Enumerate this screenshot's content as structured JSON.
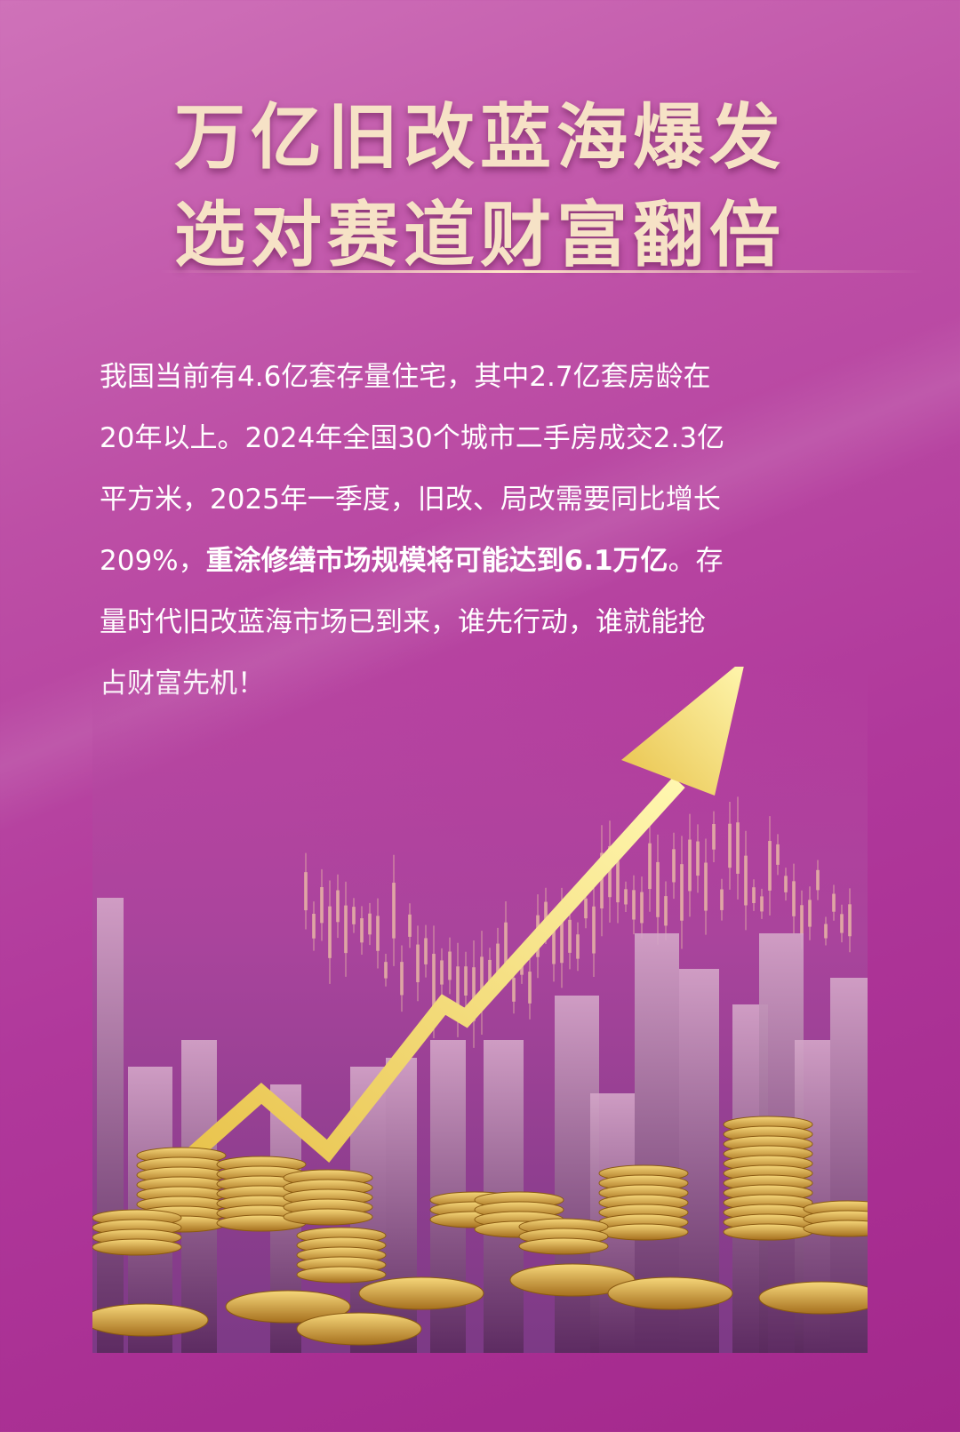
{
  "title": {
    "line1": "万亿旧改蓝海爆发",
    "line2": "选对赛道财富翻倍"
  },
  "paragraph": {
    "line1": "我国当前有4.6亿套存量住宅，其中2.7亿套房龄在",
    "line2": "20年以上。2024年全国30个城市二手房成交2.3亿",
    "line3": "平方米，2025年一季度，旧改、局改需要同比增长",
    "line4_a": "209%，",
    "line4_bold": "重涂修缮市场规模将可能达到6.1万亿",
    "line4_b": "。存",
    "line5": "量时代旧改蓝海市场已到来，谁先行动，谁就能抢",
    "line6": "占财富先机！"
  },
  "colors": {
    "background": "#b0389b",
    "title": "#f6e2c6",
    "arrow": "#f7e98a",
    "coins": "#d9a63a"
  },
  "illustration": {
    "icon": "rising-arrow-city-coins-icon"
  }
}
